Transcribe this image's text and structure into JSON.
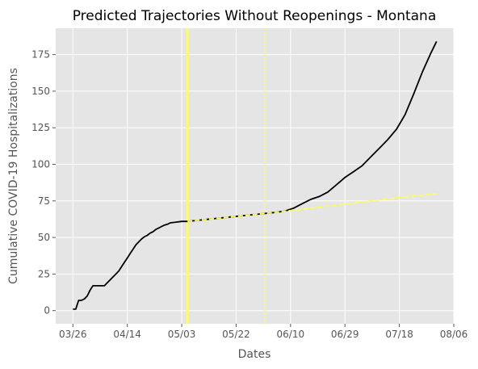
{
  "chart_data": {
    "type": "line",
    "title": "Predicted Trajectories Without Reopenings - Montana",
    "xlabel": "Dates",
    "ylabel": "Cumulative COVID-19 Hospitalizations",
    "x_tick_labels": [
      "03/26",
      "04/14",
      "05/03",
      "05/22",
      "06/10",
      "06/29",
      "07/18",
      "08/06"
    ],
    "x_tick_dates": [
      "2020-03-26",
      "2020-04-14",
      "2020-05-03",
      "2020-05-22",
      "2020-06-10",
      "2020-06-29",
      "2020-07-18",
      "2020-08-06"
    ],
    "xlim": [
      "2020-03-20",
      "2020-08-06"
    ],
    "y_ticks": [
      0,
      25,
      50,
      75,
      100,
      125,
      150,
      175
    ],
    "ylim": [
      -9,
      193
    ],
    "grid": true,
    "background": "#e5e5e5",
    "colors": {
      "actual": "#000000",
      "predicted": "#ffff4d",
      "reference": "#ffff4d",
      "grid": "#ffffff"
    },
    "reference_lines": [
      {
        "x": "2020-05-05",
        "style": "solid"
      },
      {
        "x": "2020-06-01",
        "style": "dotted"
      }
    ],
    "series": [
      {
        "color": "#000000",
        "style": "solid",
        "points": [
          [
            "2020-03-26",
            1
          ],
          [
            "2020-03-27",
            1
          ],
          [
            "2020-03-28",
            7
          ],
          [
            "2020-03-29",
            7
          ],
          [
            "2020-03-30",
            8
          ],
          [
            "2020-03-31",
            10
          ],
          [
            "2020-04-01",
            14
          ],
          [
            "2020-04-02",
            17
          ],
          [
            "2020-04-03",
            17
          ],
          [
            "2020-04-04",
            17
          ],
          [
            "2020-04-05",
            17
          ],
          [
            "2020-04-06",
            17
          ],
          [
            "2020-04-07",
            19
          ],
          [
            "2020-04-08",
            21
          ],
          [
            "2020-04-09",
            23
          ],
          [
            "2020-04-10",
            25
          ],
          [
            "2020-04-11",
            27
          ],
          [
            "2020-04-12",
            30
          ],
          [
            "2020-04-13",
            33
          ],
          [
            "2020-04-14",
            36
          ],
          [
            "2020-04-15",
            39
          ],
          [
            "2020-04-16",
            42
          ],
          [
            "2020-04-17",
            45
          ],
          [
            "2020-04-18",
            47
          ],
          [
            "2020-04-19",
            49
          ],
          [
            "2020-04-20",
            50.5
          ],
          [
            "2020-04-21",
            51.5
          ],
          [
            "2020-04-22",
            53
          ],
          [
            "2020-04-23",
            54
          ],
          [
            "2020-04-24",
            55.5
          ],
          [
            "2020-04-25",
            56.5
          ],
          [
            "2020-04-26",
            57.5
          ],
          [
            "2020-04-27",
            58.5
          ],
          [
            "2020-04-28",
            59
          ],
          [
            "2020-04-29",
            60
          ],
          [
            "2020-05-01",
            60.5
          ],
          [
            "2020-05-03",
            61
          ],
          [
            "2020-05-05",
            61
          ],
          [
            "2020-05-10",
            62
          ],
          [
            "2020-05-15",
            63
          ],
          [
            "2020-05-20",
            64
          ],
          [
            "2020-05-25",
            65
          ],
          [
            "2020-05-30",
            66
          ],
          [
            "2020-06-04",
            67
          ],
          [
            "2020-06-08",
            68
          ],
          [
            "2020-06-11",
            70
          ],
          [
            "2020-06-14",
            73
          ],
          [
            "2020-06-17",
            76
          ],
          [
            "2020-06-20",
            78
          ],
          [
            "2020-06-23",
            81
          ],
          [
            "2020-06-26",
            86
          ],
          [
            "2020-06-29",
            91
          ],
          [
            "2020-07-02",
            95
          ],
          [
            "2020-07-05",
            99
          ],
          [
            "2020-07-08",
            105
          ],
          [
            "2020-07-11",
            111
          ],
          [
            "2020-07-14",
            117
          ],
          [
            "2020-07-17",
            124
          ],
          [
            "2020-07-20",
            134
          ],
          [
            "2020-07-23",
            148
          ],
          [
            "2020-07-26",
            163
          ],
          [
            "2020-07-29",
            176
          ],
          [
            "2020-07-31",
            184
          ]
        ]
      },
      {
        "color": "#ffff4d",
        "style": "dashed",
        "points": [
          [
            "2020-05-05",
            61
          ],
          [
            "2020-05-20",
            64
          ],
          [
            "2020-06-04",
            67
          ],
          [
            "2020-06-19",
            70.5
          ],
          [
            "2020-07-04",
            74
          ],
          [
            "2020-07-19",
            77.5
          ],
          [
            "2020-07-31",
            80
          ]
        ]
      }
    ]
  }
}
